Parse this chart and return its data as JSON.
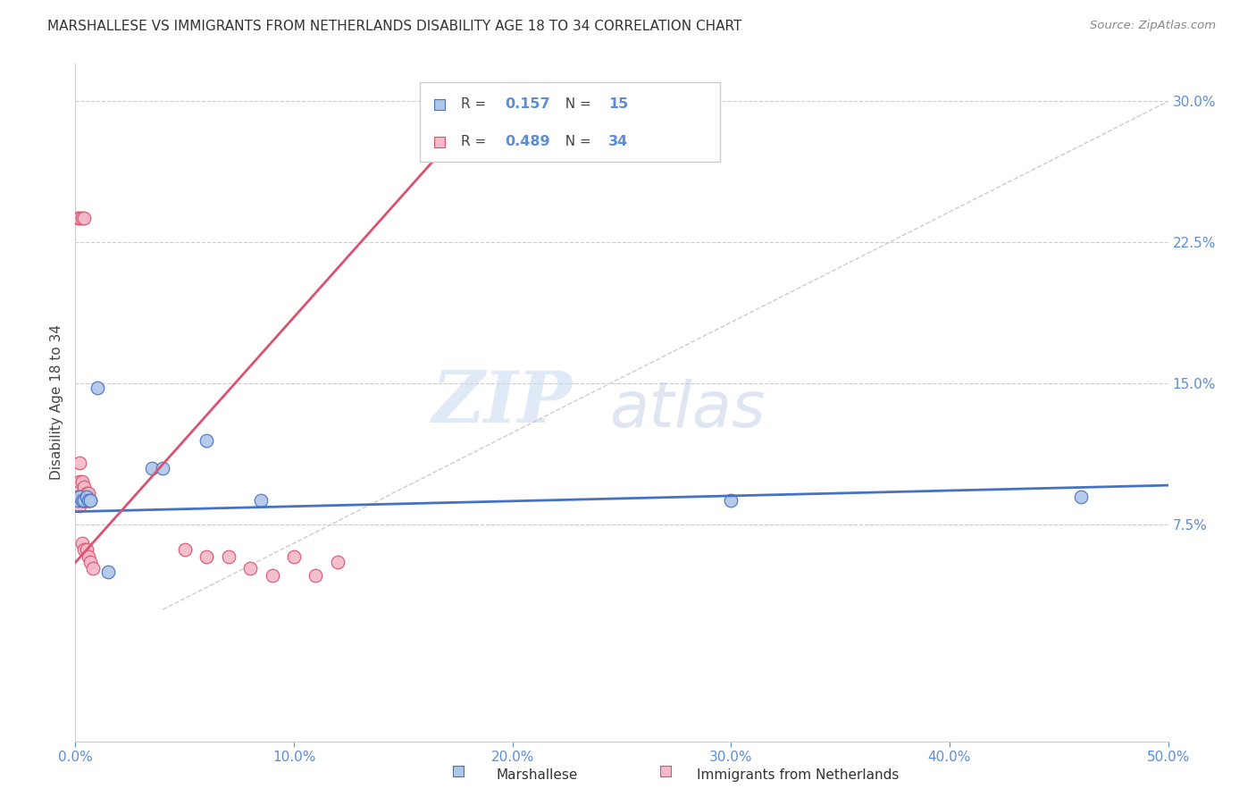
{
  "title": "MARSHALLESE VS IMMIGRANTS FROM NETHERLANDS DISABILITY AGE 18 TO 34 CORRELATION CHART",
  "source": "Source: ZipAtlas.com",
  "ylabel": "Disability Age 18 to 34",
  "xlim": [
    0.0,
    0.5
  ],
  "ylim": [
    -0.04,
    0.32
  ],
  "xticks": [
    0.0,
    0.1,
    0.2,
    0.3,
    0.4,
    0.5
  ],
  "yticks": [
    0.075,
    0.15,
    0.225,
    0.3
  ],
  "ytick_labels": [
    "7.5%",
    "15.0%",
    "22.5%",
    "30.0%"
  ],
  "xtick_labels": [
    "0.0%",
    "10.0%",
    "20.0%",
    "30.0%",
    "40.0%",
    "50.0%"
  ],
  "blue_label": "Marshallese",
  "pink_label": "Immigrants from Netherlands",
  "blue_R": "0.157",
  "blue_N": "15",
  "pink_R": "0.489",
  "pink_N": "34",
  "blue_color": "#aec6e8",
  "pink_color": "#f5b8c8",
  "blue_line_color": "#4472c4",
  "pink_line_color": "#d9536e",
  "blue_scatter": [
    [
      0.001,
      0.088
    ],
    [
      0.002,
      0.09
    ],
    [
      0.003,
      0.088
    ],
    [
      0.004,
      0.088
    ],
    [
      0.005,
      0.09
    ],
    [
      0.006,
      0.088
    ],
    [
      0.007,
      0.088
    ],
    [
      0.01,
      0.148
    ],
    [
      0.035,
      0.105
    ],
    [
      0.04,
      0.105
    ],
    [
      0.06,
      0.12
    ],
    [
      0.085,
      0.088
    ],
    [
      0.3,
      0.088
    ],
    [
      0.46,
      0.09
    ],
    [
      0.015,
      0.05
    ]
  ],
  "pink_scatter": [
    [
      0.001,
      0.238
    ],
    [
      0.002,
      0.238
    ],
    [
      0.003,
      0.238
    ],
    [
      0.004,
      0.238
    ],
    [
      0.001,
      0.09
    ],
    [
      0.001,
      0.088
    ],
    [
      0.002,
      0.085
    ],
    [
      0.002,
      0.09
    ],
    [
      0.002,
      0.098
    ],
    [
      0.002,
      0.108
    ],
    [
      0.003,
      0.088
    ],
    [
      0.003,
      0.092
    ],
    [
      0.003,
      0.098
    ],
    [
      0.004,
      0.088
    ],
    [
      0.004,
      0.095
    ],
    [
      0.005,
      0.088
    ],
    [
      0.005,
      0.092
    ],
    [
      0.006,
      0.088
    ],
    [
      0.006,
      0.092
    ],
    [
      0.007,
      0.088
    ],
    [
      0.003,
      0.065
    ],
    [
      0.004,
      0.062
    ],
    [
      0.005,
      0.062
    ],
    [
      0.006,
      0.058
    ],
    [
      0.007,
      0.055
    ],
    [
      0.008,
      0.052
    ],
    [
      0.05,
      0.062
    ],
    [
      0.06,
      0.058
    ],
    [
      0.07,
      0.058
    ],
    [
      0.08,
      0.052
    ],
    [
      0.09,
      0.048
    ],
    [
      0.1,
      0.058
    ],
    [
      0.11,
      0.048
    ],
    [
      0.12,
      0.055
    ]
  ],
  "watermark_zip": "ZIP",
  "watermark_atlas": "atlas",
  "background_color": "#ffffff"
}
